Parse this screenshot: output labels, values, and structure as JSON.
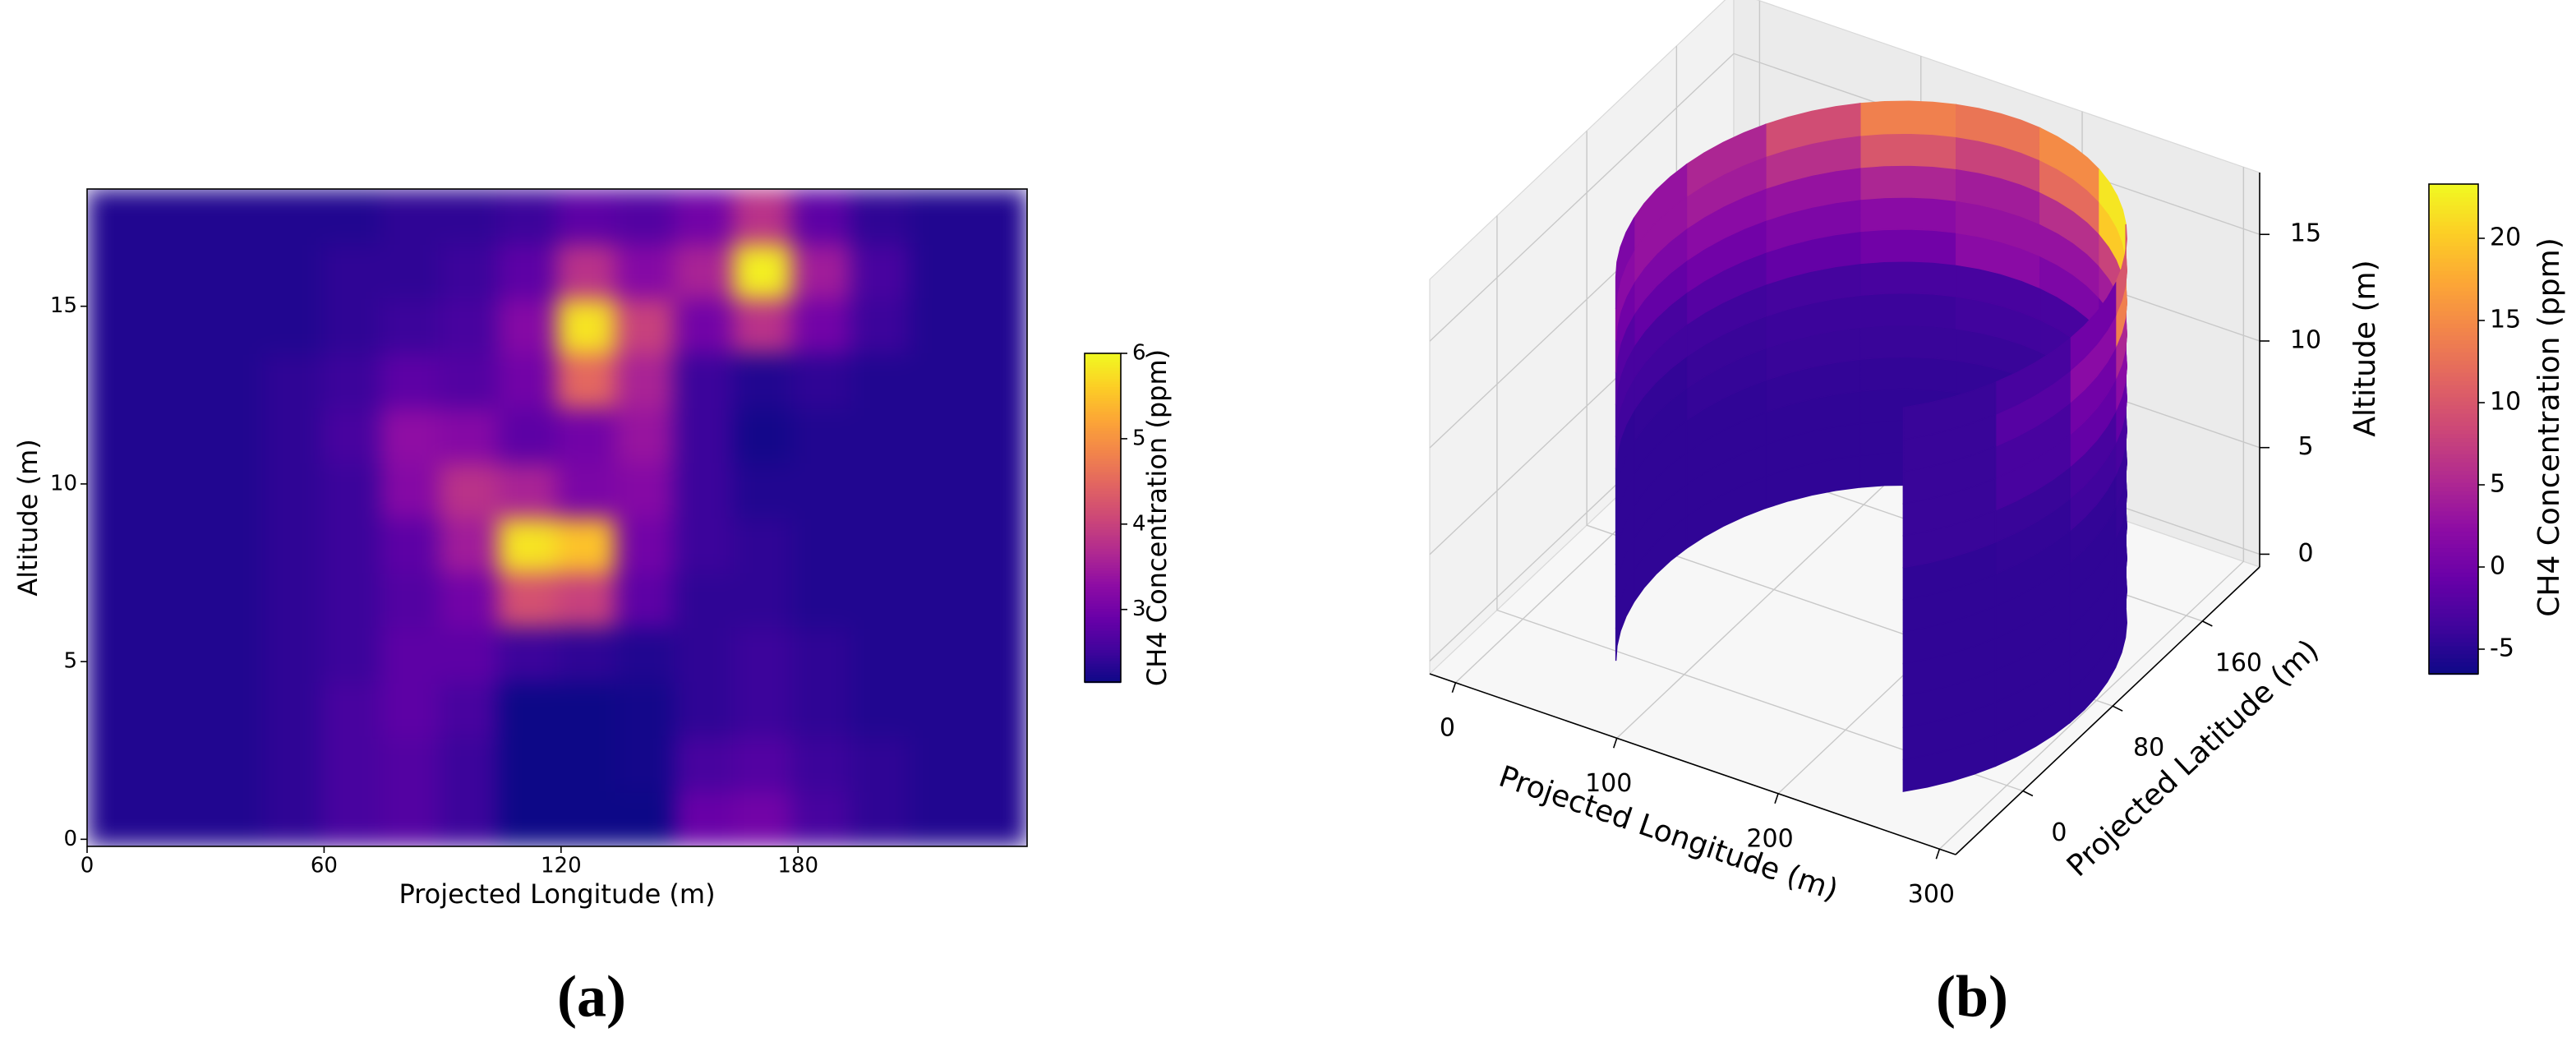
{
  "chart_data": [
    {
      "type": "heatmap",
      "label": "(a)",
      "x_label": "Projected Longitude (m)",
      "y_label": "Altitude (m)",
      "colorbar_label": "CH4 Concentration (ppm)",
      "colormap": "plasma",
      "xlim": [
        0,
        238
      ],
      "ylim": [
        -0.2,
        18.3
      ],
      "xticks": [
        0,
        60,
        120,
        180
      ],
      "yticks": [
        0,
        5,
        10,
        15
      ],
      "clim": [
        2.15,
        6
      ],
      "cticks": [
        3,
        4,
        5,
        6
      ],
      "z": [
        [
          2.3,
          2.3,
          2.3,
          2.4,
          2.6,
          2.7,
          2.5,
          2.15,
          2.15,
          2.15,
          2.9,
          3.0,
          2.6,
          2.4,
          2.3,
          2.3
        ],
        [
          2.3,
          2.3,
          2.3,
          2.4,
          2.6,
          2.7,
          2.5,
          2.15,
          2.15,
          2.2,
          2.6,
          2.7,
          2.5,
          2.4,
          2.3,
          2.3
        ],
        [
          2.3,
          2.3,
          2.3,
          2.4,
          2.6,
          2.8,
          2.6,
          2.15,
          2.15,
          2.2,
          2.4,
          2.5,
          2.4,
          2.3,
          2.3,
          2.3
        ],
        [
          2.3,
          2.3,
          2.3,
          2.4,
          2.5,
          2.8,
          2.8,
          2.5,
          2.4,
          2.3,
          2.4,
          2.5,
          2.4,
          2.3,
          2.3,
          2.3
        ],
        [
          2.3,
          2.3,
          2.3,
          2.4,
          2.5,
          2.7,
          3.0,
          4.2,
          4.0,
          2.8,
          2.4,
          2.4,
          2.3,
          2.3,
          2.3,
          2.3
        ],
        [
          2.3,
          2.3,
          2.3,
          2.4,
          2.5,
          2.8,
          3.5,
          5.8,
          5.5,
          3.0,
          2.5,
          2.4,
          2.3,
          2.3,
          2.3,
          2.3
        ],
        [
          2.3,
          2.3,
          2.3,
          2.4,
          2.5,
          3.2,
          3.8,
          3.6,
          3.1,
          3.2,
          2.5,
          2.3,
          2.3,
          2.3,
          2.3,
          2.3
        ],
        [
          2.3,
          2.3,
          2.3,
          2.4,
          2.6,
          3.3,
          3.2,
          2.8,
          3.0,
          3.4,
          2.5,
          2.2,
          2.3,
          2.3,
          2.3,
          2.3
        ],
        [
          2.3,
          2.3,
          2.3,
          2.4,
          2.5,
          2.8,
          2.7,
          3.0,
          4.5,
          3.6,
          2.5,
          2.3,
          2.4,
          2.3,
          2.3,
          2.3
        ],
        [
          2.3,
          2.3,
          2.3,
          2.3,
          2.4,
          2.5,
          2.6,
          3.2,
          5.8,
          4.0,
          3.0,
          3.8,
          3.0,
          2.5,
          2.3,
          2.3
        ],
        [
          2.3,
          2.3,
          2.3,
          2.3,
          2.4,
          2.4,
          2.5,
          2.8,
          3.8,
          3.2,
          3.6,
          5.9,
          3.5,
          2.6,
          2.3,
          2.3
        ],
        [
          2.3,
          2.3,
          2.3,
          2.3,
          2.3,
          2.4,
          2.4,
          2.5,
          2.8,
          2.7,
          3.0,
          3.8,
          2.8,
          2.4,
          2.3,
          2.3
        ]
      ]
    },
    {
      "type": "cylinder3d",
      "label": "(b)",
      "x_label": "Projected Longitude (m)",
      "y_label": "Projected Latitude (m)",
      "z_label": "Altitude (m)",
      "colorbar_label": "CH4 Concentration (ppm)",
      "colormap": "plasma",
      "xlim": [
        -16,
        310
      ],
      "ylim": [
        -60,
        211
      ],
      "zlim": [
        -0.6,
        17.9
      ],
      "xticks": [
        0,
        100,
        200,
        300
      ],
      "yticks": [
        0,
        80,
        160
      ],
      "zticks": [
        0,
        5,
        10,
        15
      ],
      "clim": [
        -6.5,
        23.3
      ],
      "cticks": [
        -5,
        0,
        5,
        10,
        15,
        20
      ],
      "center": [
        175,
        59
      ],
      "radius": 130,
      "angle_range": [
        -48,
        215
      ],
      "altitude_range": [
        0,
        18
      ],
      "z": [
        [
          -4.5,
          -4.5,
          -4.5,
          -4.5,
          -4.5,
          -4.5,
          -4.5,
          -4.5,
          -4.5,
          -4.5,
          -4.5,
          -4.5
        ],
        [
          -4.5,
          -4.5,
          -4.5,
          -4.5,
          -4.5,
          -4.5,
          -4.5,
          -4.5,
          -4.5,
          -4.5,
          -4.5,
          -4.5
        ],
        [
          -4.5,
          -4.5,
          -4.5,
          -4.5,
          -4.5,
          -4.5,
          -4.5,
          -4.5,
          -4.5,
          -4.5,
          -4.5,
          -4.5
        ],
        [
          -4.5,
          -4.5,
          -4.5,
          -4.5,
          -4.3,
          -4.3,
          -4.3,
          -4.3,
          -4.3,
          -4.5,
          -4.5,
          -4.5
        ],
        [
          -4.5,
          -4.5,
          -4.5,
          -4.2,
          -4.0,
          -4.0,
          -4.0,
          -4.0,
          -4.0,
          -4.2,
          -4.5,
          -4.5
        ],
        [
          -4.5,
          -4.5,
          -4.3,
          -4.0,
          -3.8,
          -3.5,
          -3.5,
          -3.8,
          -3.8,
          -4.0,
          -4.3,
          -4.5
        ],
        [
          -4.5,
          -4.3,
          -3.5,
          -3.0,
          -3.0,
          -3.0,
          -3.0,
          -3.0,
          -3.2,
          -3.5,
          -3.5,
          -3.5
        ],
        [
          -4.0,
          -4.0,
          -3.0,
          -1.0,
          0.0,
          1.0,
          2.0,
          0.0,
          -1.0,
          -2.0,
          -3.0,
          -3.0
        ],
        [
          -4.0,
          -3.0,
          -1.0,
          2.0,
          4.0,
          3.0,
          3.0,
          2.0,
          1.0,
          0.0,
          -1.0,
          -2.0
        ],
        [
          -4.0,
          -3.0,
          0.0,
          5.0,
          8.0,
          6.0,
          4.0,
          5.0,
          3.0,
          2.0,
          1.0,
          0.0
        ],
        [
          -4.0,
          -2.0,
          2.0,
          14.0,
          20.0,
          12.0,
          8.0,
          10.0,
          6.0,
          4.0,
          3.0,
          2.0
        ],
        [
          -4.0,
          -3.0,
          0.0,
          10.0,
          22.0,
          15.0,
          13.0,
          14.0,
          9.0,
          5.0,
          3.0,
          1.0
        ]
      ]
    }
  ]
}
